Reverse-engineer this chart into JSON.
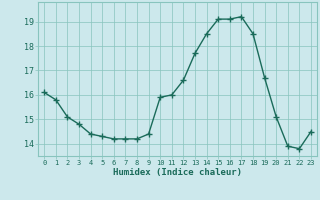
{
  "x": [
    0,
    1,
    2,
    3,
    4,
    5,
    6,
    7,
    8,
    9,
    10,
    11,
    12,
    13,
    14,
    15,
    16,
    17,
    18,
    19,
    20,
    21,
    22,
    23
  ],
  "y": [
    16.1,
    15.8,
    15.1,
    14.8,
    14.4,
    14.3,
    14.2,
    14.2,
    14.2,
    14.4,
    15.9,
    16.0,
    16.6,
    17.7,
    18.5,
    19.1,
    19.1,
    19.2,
    18.5,
    16.7,
    15.1,
    13.9,
    13.8,
    14.5
  ],
  "xlim": [
    -0.5,
    23.5
  ],
  "ylim": [
    13.5,
    19.8
  ],
  "yticks": [
    14,
    15,
    16,
    17,
    18,
    19
  ],
  "xticks": [
    0,
    1,
    2,
    3,
    4,
    5,
    6,
    7,
    8,
    9,
    10,
    11,
    12,
    13,
    14,
    15,
    16,
    17,
    18,
    19,
    20,
    21,
    22,
    23
  ],
  "xlabel": "Humidex (Indice chaleur)",
  "line_color": "#1a6b5a",
  "marker_color": "#1a6b5a",
  "bg_color": "#cce8ec",
  "grid_color": "#88c4be",
  "title": ""
}
